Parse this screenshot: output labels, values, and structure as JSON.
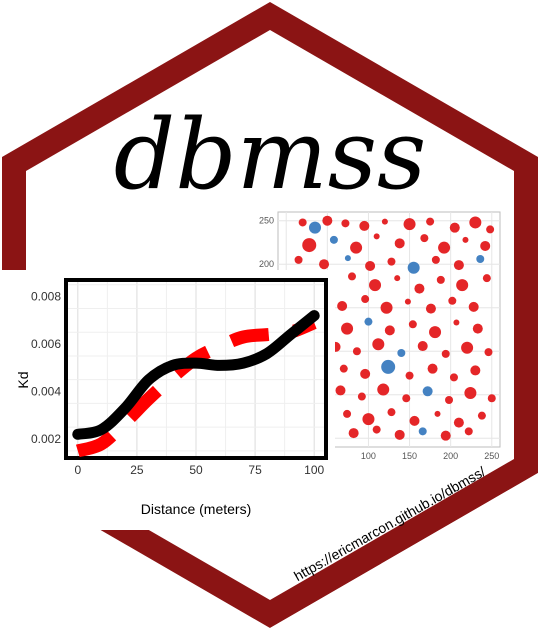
{
  "title": "dbmss",
  "url": "https://ericmarcon.github.io/dbmss/",
  "colors": {
    "border": "#8b1414",
    "background": "#ffffff",
    "line": "#000000",
    "dashed": "#ff0000",
    "point_red": "#e31a1c",
    "point_blue": "#3a7bbf"
  },
  "chart_data": [
    {
      "type": "line",
      "xlabel": "Distance (meters)",
      "ylabel": "Kd",
      "xlim": [
        -5,
        105
      ],
      "ylim": [
        0.0012,
        0.0087
      ],
      "x_ticks": [
        "0",
        "25",
        "50",
        "75",
        "100"
      ],
      "y_ticks": [
        "0.002",
        "0.004",
        "0.006",
        "0.008"
      ],
      "grid": true,
      "series": [
        {
          "style": "solid",
          "color": "#000000",
          "x": [
            0,
            10,
            20,
            30,
            40,
            50,
            60,
            70,
            80,
            90,
            100
          ],
          "y": [
            0.0022,
            0.0024,
            0.0033,
            0.0045,
            0.0051,
            0.0052,
            0.0051,
            0.0052,
            0.0056,
            0.0064,
            0.0072
          ]
        },
        {
          "style": "dashed",
          "color": "#ff0000",
          "x": [
            0,
            10,
            20,
            30,
            40,
            50,
            60,
            70,
            80,
            90,
            100
          ],
          "y": [
            0.0015,
            0.0018,
            0.0027,
            0.0037,
            0.0046,
            0.0054,
            0.0059,
            0.0063,
            0.0064,
            0.0065,
            0.0069
          ]
        }
      ]
    },
    {
      "type": "scatter",
      "xlim": [
        -10,
        260
      ],
      "ylim": [
        -10,
        260
      ],
      "x_ticks": [
        "100",
        "150",
        "200",
        "250"
      ],
      "y_ticks": [
        "250",
        "200"
      ],
      "grid": true,
      "points": [
        {
          "x": 20,
          "y": 248,
          "size": 4,
          "group": "red"
        },
        {
          "x": 35,
          "y": 242,
          "size": 6,
          "group": "blue"
        },
        {
          "x": 50,
          "y": 250,
          "size": 5,
          "group": "red"
        },
        {
          "x": 72,
          "y": 247,
          "size": 4,
          "group": "red"
        },
        {
          "x": 95,
          "y": 244,
          "size": 5,
          "group": "red"
        },
        {
          "x": 120,
          "y": 249,
          "size": 3,
          "group": "red"
        },
        {
          "x": 150,
          "y": 246,
          "size": 6,
          "group": "red"
        },
        {
          "x": 175,
          "y": 249,
          "size": 4,
          "group": "red"
        },
        {
          "x": 205,
          "y": 242,
          "size": 5,
          "group": "red"
        },
        {
          "x": 230,
          "y": 248,
          "size": 6,
          "group": "red"
        },
        {
          "x": 248,
          "y": 240,
          "size": 4,
          "group": "red"
        },
        {
          "x": 28,
          "y": 222,
          "size": 7,
          "group": "red"
        },
        {
          "x": 58,
          "y": 228,
          "size": 4,
          "group": "blue"
        },
        {
          "x": 85,
          "y": 219,
          "size": 6,
          "group": "red"
        },
        {
          "x": 110,
          "y": 232,
          "size": 3,
          "group": "red"
        },
        {
          "x": 138,
          "y": 224,
          "size": 5,
          "group": "red"
        },
        {
          "x": 168,
          "y": 230,
          "size": 4,
          "group": "red"
        },
        {
          "x": 192,
          "y": 219,
          "size": 6,
          "group": "red"
        },
        {
          "x": 218,
          "y": 228,
          "size": 3,
          "group": "red"
        },
        {
          "x": 242,
          "y": 221,
          "size": 5,
          "group": "red"
        },
        {
          "x": 15,
          "y": 205,
          "size": 4,
          "group": "red"
        },
        {
          "x": 46,
          "y": 200,
          "size": 5,
          "group": "red"
        },
        {
          "x": 75,
          "y": 207,
          "size": 3,
          "group": "blue"
        },
        {
          "x": 102,
          "y": 198,
          "size": 5,
          "group": "red"
        },
        {
          "x": 128,
          "y": 203,
          "size": 4,
          "group": "red"
        },
        {
          "x": 155,
          "y": 196,
          "size": 6,
          "group": "blue"
        },
        {
          "x": 182,
          "y": 205,
          "size": 4,
          "group": "red"
        },
        {
          "x": 210,
          "y": 199,
          "size": 5,
          "group": "red"
        },
        {
          "x": 236,
          "y": 206,
          "size": 4,
          "group": "blue"
        },
        {
          "x": 22,
          "y": 182,
          "size": 6,
          "group": "red"
        },
        {
          "x": 52,
          "y": 178,
          "size": 5,
          "group": "blue"
        },
        {
          "x": 80,
          "y": 186,
          "size": 4,
          "group": "red"
        },
        {
          "x": 108,
          "y": 176,
          "size": 6,
          "group": "red"
        },
        {
          "x": 135,
          "y": 184,
          "size": 3,
          "group": "red"
        },
        {
          "x": 162,
          "y": 172,
          "size": 5,
          "group": "red"
        },
        {
          "x": 188,
          "y": 182,
          "size": 4,
          "group": "red"
        },
        {
          "x": 214,
          "y": 176,
          "size": 6,
          "group": "red"
        },
        {
          "x": 244,
          "y": 184,
          "size": 4,
          "group": "red"
        },
        {
          "x": 40,
          "y": 158,
          "size": 7,
          "group": "blue"
        },
        {
          "x": 68,
          "y": 152,
          "size": 5,
          "group": "red"
        },
        {
          "x": 96,
          "y": 160,
          "size": 4,
          "group": "red"
        },
        {
          "x": 122,
          "y": 150,
          "size": 6,
          "group": "red"
        },
        {
          "x": 148,
          "y": 157,
          "size": 3,
          "group": "red"
        },
        {
          "x": 176,
          "y": 149,
          "size": 5,
          "group": "red"
        },
        {
          "x": 202,
          "y": 158,
          "size": 4,
          "group": "red"
        },
        {
          "x": 228,
          "y": 151,
          "size": 5,
          "group": "red"
        },
        {
          "x": 48,
          "y": 132,
          "size": 4,
          "group": "red"
        },
        {
          "x": 74,
          "y": 126,
          "size": 6,
          "group": "red"
        },
        {
          "x": 100,
          "y": 134,
          "size": 4,
          "group": "blue"
        },
        {
          "x": 126,
          "y": 124,
          "size": 5,
          "group": "red"
        },
        {
          "x": 154,
          "y": 131,
          "size": 4,
          "group": "red"
        },
        {
          "x": 181,
          "y": 122,
          "size": 6,
          "group": "red"
        },
        {
          "x": 207,
          "y": 133,
          "size": 3,
          "group": "red"
        },
        {
          "x": 233,
          "y": 126,
          "size": 5,
          "group": "red"
        },
        {
          "x": 60,
          "y": 105,
          "size": 5,
          "group": "red"
        },
        {
          "x": 86,
          "y": 100,
          "size": 4,
          "group": "red"
        },
        {
          "x": 112,
          "y": 108,
          "size": 6,
          "group": "red"
        },
        {
          "x": 140,
          "y": 98,
          "size": 4,
          "group": "blue"
        },
        {
          "x": 166,
          "y": 106,
          "size": 5,
          "group": "red"
        },
        {
          "x": 194,
          "y": 97,
          "size": 4,
          "group": "red"
        },
        {
          "x": 220,
          "y": 104,
          "size": 6,
          "group": "red"
        },
        {
          "x": 246,
          "y": 99,
          "size": 4,
          "group": "red"
        },
        {
          "x": 70,
          "y": 80,
          "size": 4,
          "group": "red"
        },
        {
          "x": 96,
          "y": 74,
          "size": 5,
          "group": "red"
        },
        {
          "x": 124,
          "y": 82,
          "size": 7,
          "group": "blue"
        },
        {
          "x": 150,
          "y": 72,
          "size": 4,
          "group": "red"
        },
        {
          "x": 178,
          "y": 80,
          "size": 5,
          "group": "red"
        },
        {
          "x": 204,
          "y": 70,
          "size": 4,
          "group": "red"
        },
        {
          "x": 230,
          "y": 78,
          "size": 5,
          "group": "red"
        },
        {
          "x": 66,
          "y": 55,
          "size": 5,
          "group": "red"
        },
        {
          "x": 92,
          "y": 48,
          "size": 4,
          "group": "red"
        },
        {
          "x": 118,
          "y": 56,
          "size": 6,
          "group": "red"
        },
        {
          "x": 146,
          "y": 46,
          "size": 4,
          "group": "red"
        },
        {
          "x": 172,
          "y": 54,
          "size": 5,
          "group": "blue"
        },
        {
          "x": 198,
          "y": 44,
          "size": 4,
          "group": "red"
        },
        {
          "x": 224,
          "y": 52,
          "size": 6,
          "group": "red"
        },
        {
          "x": 250,
          "y": 46,
          "size": 4,
          "group": "red"
        },
        {
          "x": 74,
          "y": 28,
          "size": 4,
          "group": "red"
        },
        {
          "x": 100,
          "y": 22,
          "size": 6,
          "group": "red"
        },
        {
          "x": 128,
          "y": 30,
          "size": 4,
          "group": "red"
        },
        {
          "x": 156,
          "y": 20,
          "size": 5,
          "group": "red"
        },
        {
          "x": 184,
          "y": 28,
          "size": 3,
          "group": "red"
        },
        {
          "x": 210,
          "y": 18,
          "size": 5,
          "group": "red"
        },
        {
          "x": 238,
          "y": 26,
          "size": 4,
          "group": "red"
        },
        {
          "x": 82,
          "y": 6,
          "size": 5,
          "group": "red"
        },
        {
          "x": 110,
          "y": 10,
          "size": 4,
          "group": "red"
        },
        {
          "x": 138,
          "y": 4,
          "size": 5,
          "group": "red"
        },
        {
          "x": 166,
          "y": 8,
          "size": 4,
          "group": "blue"
        },
        {
          "x": 194,
          "y": 3,
          "size": 5,
          "group": "red"
        },
        {
          "x": 222,
          "y": 8,
          "size": 4,
          "group": "red"
        }
      ]
    }
  ]
}
